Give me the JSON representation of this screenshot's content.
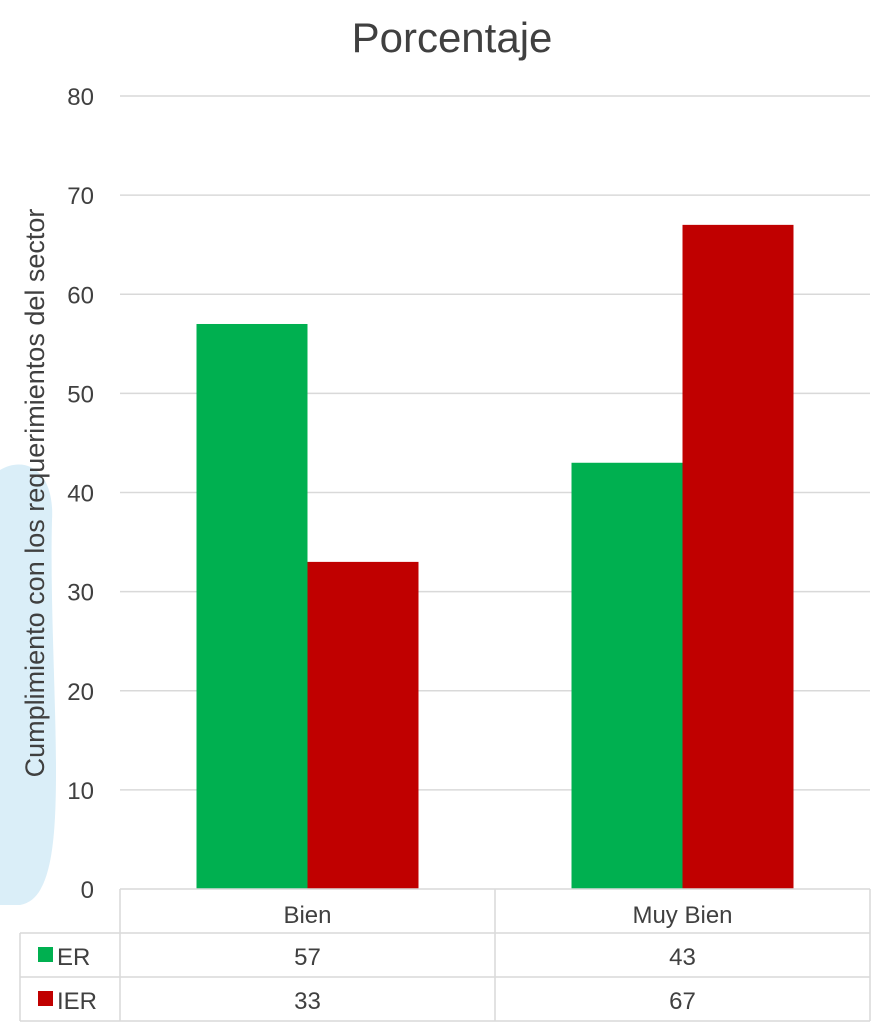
{
  "chart_data": {
    "type": "bar",
    "title": "Porcentaje",
    "ylabel": "Cumplimiento con los requerimientos del sector",
    "xlabel": "",
    "categories": [
      "Bien",
      "Muy Bien"
    ],
    "series": [
      {
        "name": "ER",
        "values": [
          57,
          43
        ],
        "color": "#00b050"
      },
      {
        "name": "IER",
        "values": [
          33,
          67
        ],
        "color": "#c00000"
      }
    ],
    "ylim": [
      0,
      80
    ],
    "yticks": [
      0,
      10,
      20,
      30,
      40,
      50,
      60,
      70,
      80
    ],
    "grid": true,
    "legend": "data-table",
    "data_table": true
  },
  "colors": {
    "background": "#ffffff",
    "text": "#404040",
    "grid": "#d9d9d9",
    "decor": "#daeef8"
  }
}
